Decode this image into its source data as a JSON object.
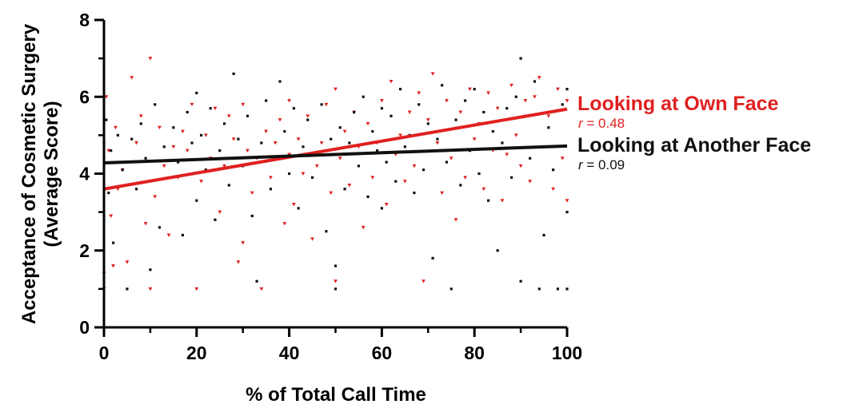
{
  "chart_data": {
    "type": "scatter",
    "title": "",
    "xlabel": "% of Total Call Time",
    "ylabel_lines": [
      "Acceptance of Cosmetic Surgery",
      "(Average Score)"
    ],
    "xlim": [
      0,
      100
    ],
    "ylim": [
      0,
      8
    ],
    "xticks": [
      "0",
      "20",
      "40",
      "60",
      "80",
      "100"
    ],
    "yticks": [
      "0",
      "2",
      "4",
      "6",
      "8"
    ],
    "grid": false,
    "series": [
      {
        "name": "Looking at Own Face",
        "color": "#e02020",
        "marker": "triangle-down",
        "r_value": "0.48",
        "fit": {
          "x": [
            0,
            100
          ],
          "y": [
            3.6,
            5.68
          ]
        },
        "points": [
          [
            0,
            1.0
          ],
          [
            0,
            1.4
          ],
          [
            0.5,
            6.0
          ],
          [
            1,
            4.6
          ],
          [
            1.5,
            2.9
          ],
          [
            2,
            1.6
          ],
          [
            2.5,
            5.2
          ],
          [
            3,
            3.6
          ],
          [
            4,
            4.1
          ],
          [
            5,
            1.7
          ],
          [
            6,
            6.5
          ],
          [
            7,
            4.8
          ],
          [
            8,
            5.5
          ],
          [
            9,
            2.7
          ],
          [
            10,
            7.0
          ],
          [
            10,
            1.0
          ],
          [
            11,
            3.4
          ],
          [
            12,
            5.2
          ],
          [
            13,
            4.2
          ],
          [
            14,
            2.4
          ],
          [
            15,
            4.7
          ],
          [
            16,
            3.9
          ],
          [
            17,
            5.1
          ],
          [
            18,
            4.6
          ],
          [
            19,
            5.8
          ],
          [
            20,
            1.0
          ],
          [
            21,
            3.8
          ],
          [
            22,
            5.0
          ],
          [
            23,
            4.4
          ],
          [
            24,
            5.7
          ],
          [
            25,
            3.0
          ],
          [
            26,
            4.2
          ],
          [
            27,
            5.5
          ],
          [
            28,
            4.9
          ],
          [
            29,
            1.7
          ],
          [
            30,
            5.8
          ],
          [
            30,
            2.2
          ],
          [
            31,
            4.6
          ],
          [
            32,
            3.5
          ],
          [
            33,
            4.4
          ],
          [
            34,
            1.0
          ],
          [
            35,
            5.1
          ],
          [
            36,
            3.9
          ],
          [
            37,
            4.8
          ],
          [
            38,
            5.4
          ],
          [
            39,
            2.7
          ],
          [
            40,
            4.5
          ],
          [
            40,
            5.9
          ],
          [
            41,
            3.2
          ],
          [
            42,
            4.9
          ],
          [
            43,
            4.0
          ],
          [
            44,
            5.5
          ],
          [
            45,
            2.3
          ],
          [
            46,
            4.2
          ],
          [
            47,
            4.8
          ],
          [
            48,
            5.8
          ],
          [
            49,
            3.5
          ],
          [
            50,
            6.2
          ],
          [
            50,
            1.2
          ],
          [
            51,
            4.4
          ],
          [
            52,
            5.1
          ],
          [
            53,
            3.7
          ],
          [
            54,
            5.6
          ],
          [
            55,
            4.7
          ],
          [
            56,
            2.6
          ],
          [
            57,
            5.3
          ],
          [
            58,
            3.9
          ],
          [
            59,
            4.8
          ],
          [
            60,
            5.9
          ],
          [
            61,
            3.2
          ],
          [
            62,
            6.4
          ],
          [
            63,
            4.5
          ],
          [
            64,
            5.0
          ],
          [
            65,
            3.8
          ],
          [
            66,
            5.6
          ],
          [
            67,
            4.2
          ],
          [
            68,
            6.1
          ],
          [
            69,
            1.2
          ],
          [
            70,
            5.4
          ],
          [
            71,
            6.6
          ],
          [
            72,
            4.8
          ],
          [
            73,
            3.5
          ],
          [
            74,
            5.9
          ],
          [
            75,
            4.4
          ],
          [
            76,
            2.8
          ],
          [
            77,
            5.6
          ],
          [
            78,
            3.9
          ],
          [
            79,
            6.2
          ],
          [
            80,
            4.9
          ],
          [
            81,
            5.3
          ],
          [
            82,
            3.6
          ],
          [
            83,
            6.1
          ],
          [
            84,
            4.6
          ],
          [
            85,
            5.7
          ],
          [
            86,
            3.3
          ],
          [
            87,
            4.5
          ],
          [
            88,
            6.3
          ],
          [
            89,
            5.0
          ],
          [
            90,
            4.2
          ],
          [
            91,
            5.9
          ],
          [
            92,
            3.8
          ],
          [
            93,
            6.0
          ],
          [
            94,
            6.5
          ],
          [
            95,
            4.7
          ],
          [
            96,
            5.5
          ],
          [
            97,
            3.6
          ],
          [
            98,
            6.2
          ],
          [
            99,
            4.4
          ],
          [
            100,
            5.9
          ],
          [
            100,
            3.3
          ]
        ]
      },
      {
        "name": "Looking at Another Face",
        "color": "#111111",
        "marker": "square",
        "r_value": "0.09",
        "fit": {
          "x": [
            0,
            100
          ],
          "y": [
            4.28,
            4.72
          ]
        },
        "points": [
          [
            0,
            4.8
          ],
          [
            0,
            2.9
          ],
          [
            0.5,
            5.4
          ],
          [
            1,
            3.5
          ],
          [
            1.5,
            4.6
          ],
          [
            2,
            2.2
          ],
          [
            3,
            5.0
          ],
          [
            4,
            4.1
          ],
          [
            5,
            1.0
          ],
          [
            6,
            4.9
          ],
          [
            7,
            3.6
          ],
          [
            8,
            5.3
          ],
          [
            9,
            4.4
          ],
          [
            10,
            1.5
          ],
          [
            11,
            5.8
          ],
          [
            12,
            2.6
          ],
          [
            13,
            4.7
          ],
          [
            14,
            3.9
          ],
          [
            15,
            5.2
          ],
          [
            16,
            4.3
          ],
          [
            17,
            2.4
          ],
          [
            18,
            5.6
          ],
          [
            19,
            4.8
          ],
          [
            20,
            6.1
          ],
          [
            20,
            3.3
          ],
          [
            21,
            5.0
          ],
          [
            22,
            4.1
          ],
          [
            23,
            5.7
          ],
          [
            24,
            2.8
          ],
          [
            25,
            4.6
          ],
          [
            26,
            5.3
          ],
          [
            27,
            3.7
          ],
          [
            28,
            6.6
          ],
          [
            29,
            4.9
          ],
          [
            30,
            4.2
          ],
          [
            31,
            5.5
          ],
          [
            32,
            2.9
          ],
          [
            33,
            1.2
          ],
          [
            34,
            4.8
          ],
          [
            35,
            5.9
          ],
          [
            36,
            3.6
          ],
          [
            37,
            4.4
          ],
          [
            38,
            6.4
          ],
          [
            39,
            5.1
          ],
          [
            40,
            4.0
          ],
          [
            41,
            5.7
          ],
          [
            42,
            3.1
          ],
          [
            43,
            4.7
          ],
          [
            44,
            5.4
          ],
          [
            45,
            3.9
          ],
          [
            46,
            4.5
          ],
          [
            47,
            5.8
          ],
          [
            48,
            2.5
          ],
          [
            49,
            4.9
          ],
          [
            50,
            1.6
          ],
          [
            50,
            1.0
          ],
          [
            51,
            5.2
          ],
          [
            52,
            3.6
          ],
          [
            53,
            4.8
          ],
          [
            54,
            5.6
          ],
          [
            55,
            4.2
          ],
          [
            56,
            6.0
          ],
          [
            57,
            3.4
          ],
          [
            58,
            5.1
          ],
          [
            59,
            4.6
          ],
          [
            60,
            5.7
          ],
          [
            60,
            3.1
          ],
          [
            61,
            4.3
          ],
          [
            62,
            5.5
          ],
          [
            63,
            3.8
          ],
          [
            64,
            6.2
          ],
          [
            65,
            4.7
          ],
          [
            66,
            5.0
          ],
          [
            67,
            3.5
          ],
          [
            68,
            5.8
          ],
          [
            69,
            4.1
          ],
          [
            70,
            5.3
          ],
          [
            71,
            1.8
          ],
          [
            72,
            4.9
          ],
          [
            73,
            6.3
          ],
          [
            74,
            4.3
          ],
          [
            75,
            1.0
          ],
          [
            76,
            5.4
          ],
          [
            77,
            3.7
          ],
          [
            78,
            5.9
          ],
          [
            79,
            4.6
          ],
          [
            80,
            6.2
          ],
          [
            81,
            4.0
          ],
          [
            82,
            5.6
          ],
          [
            83,
            3.3
          ],
          [
            84,
            5.1
          ],
          [
            85,
            2.0
          ],
          [
            86,
            4.8
          ],
          [
            87,
            5.7
          ],
          [
            88,
            3.9
          ],
          [
            89,
            6.0
          ],
          [
            90,
            7.0
          ],
          [
            90,
            1.2
          ],
          [
            91,
            5.5
          ],
          [
            92,
            4.4
          ],
          [
            93,
            6.4
          ],
          [
            94,
            1.0
          ],
          [
            95,
            2.4
          ],
          [
            96,
            5.2
          ],
          [
            97,
            4.1
          ],
          [
            98,
            1.0
          ],
          [
            99,
            5.8
          ],
          [
            100,
            3.0
          ],
          [
            100,
            1.0
          ],
          [
            100,
            6.2
          ]
        ]
      }
    ]
  }
}
